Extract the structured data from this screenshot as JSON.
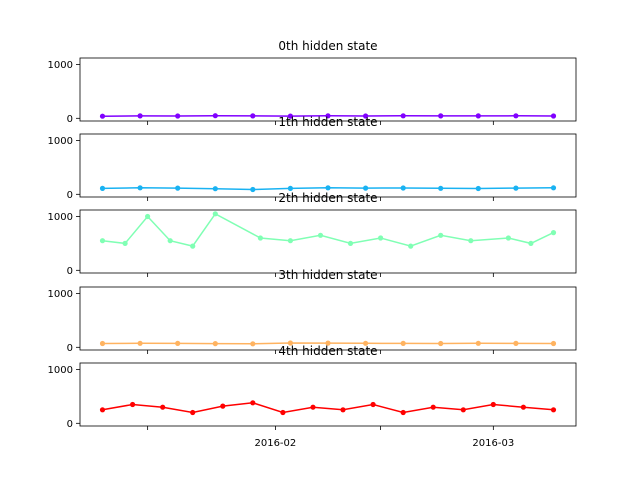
{
  "chart_data": {
    "type": "line",
    "shared_x": {
      "type": "date",
      "range": [
        "2016-01-06",
        "2016-03-12"
      ],
      "tick_values": [
        "2016-01-15",
        "2016-02-01",
        "2016-02-15",
        "2016-03-01"
      ],
      "tick_labels": [
        "",
        "2016-02",
        "",
        "2016-03"
      ]
    },
    "marker": "circle",
    "grid": false,
    "legend": "none",
    "panels": [
      {
        "title": "0th hidden state",
        "color": "#8000ff",
        "ylim": [
          -50,
          1120
        ],
        "yticks": [
          0,
          1000
        ],
        "series": {
          "x": [
            "2016-01-09",
            "2016-01-14",
            "2016-01-19",
            "2016-01-24",
            "2016-01-29",
            "2016-02-03",
            "2016-02-08",
            "2016-02-13",
            "2016-02-18",
            "2016-02-23",
            "2016-02-28",
            "2016-03-04",
            "2016-03-09"
          ],
          "y": [
            40,
            45,
            42,
            48,
            44,
            41,
            46,
            43,
            47,
            45,
            44,
            46,
            42
          ]
        }
      },
      {
        "title": "1th hidden state",
        "color": "#19b2f2",
        "ylim": [
          -50,
          1120
        ],
        "yticks": [
          0,
          1000
        ],
        "series": {
          "x": [
            "2016-01-09",
            "2016-01-14",
            "2016-01-19",
            "2016-01-24",
            "2016-01-29",
            "2016-02-03",
            "2016-02-08",
            "2016-02-13",
            "2016-02-18",
            "2016-02-23",
            "2016-02-28",
            "2016-03-04",
            "2016-03-09"
          ],
          "y": [
            110,
            120,
            115,
            105,
            90,
            110,
            120,
            115,
            118,
            112,
            108,
            115,
            120
          ]
        }
      },
      {
        "title": "2th hidden state",
        "color": "#80ffb4",
        "ylim": [
          -50,
          1120
        ],
        "yticks": [
          0,
          1000
        ],
        "series": {
          "x": [
            "2016-01-09",
            "2016-01-12",
            "2016-01-15",
            "2016-01-18",
            "2016-01-21",
            "2016-01-24",
            "2016-01-30",
            "2016-02-03",
            "2016-02-07",
            "2016-02-11",
            "2016-02-15",
            "2016-02-19",
            "2016-02-23",
            "2016-02-27",
            "2016-03-03",
            "2016-03-06",
            "2016-03-09"
          ],
          "y": [
            550,
            500,
            1000,
            550,
            450,
            1050,
            600,
            550,
            650,
            500,
            600,
            450,
            650,
            550,
            600,
            500,
            700
          ]
        }
      },
      {
        "title": "3th hidden state",
        "color": "#ffb360",
        "ylim": [
          -50,
          1120
        ],
        "yticks": [
          0,
          1000
        ],
        "series": {
          "x": [
            "2016-01-09",
            "2016-01-14",
            "2016-01-19",
            "2016-01-24",
            "2016-01-29",
            "2016-02-03",
            "2016-02-08",
            "2016-02-13",
            "2016-02-18",
            "2016-02-23",
            "2016-02-28",
            "2016-03-04",
            "2016-03-09"
          ],
          "y": [
            70,
            75,
            72,
            68,
            65,
            80,
            78,
            75,
            72,
            70,
            74,
            72,
            70
          ]
        }
      },
      {
        "title": "4th hidden state",
        "color": "#ff0000",
        "ylim": [
          -50,
          1120
        ],
        "yticks": [
          0,
          1000
        ],
        "series": {
          "x": [
            "2016-01-09",
            "2016-01-13",
            "2016-01-17",
            "2016-01-21",
            "2016-01-25",
            "2016-01-29",
            "2016-02-02",
            "2016-02-06",
            "2016-02-10",
            "2016-02-14",
            "2016-02-18",
            "2016-02-22",
            "2016-02-26",
            "2016-03-01",
            "2016-03-05",
            "2016-03-09"
          ],
          "y": [
            250,
            350,
            300,
            200,
            320,
            380,
            200,
            300,
            250,
            350,
            200,
            300,
            250,
            350,
            300,
            250
          ]
        }
      }
    ]
  }
}
